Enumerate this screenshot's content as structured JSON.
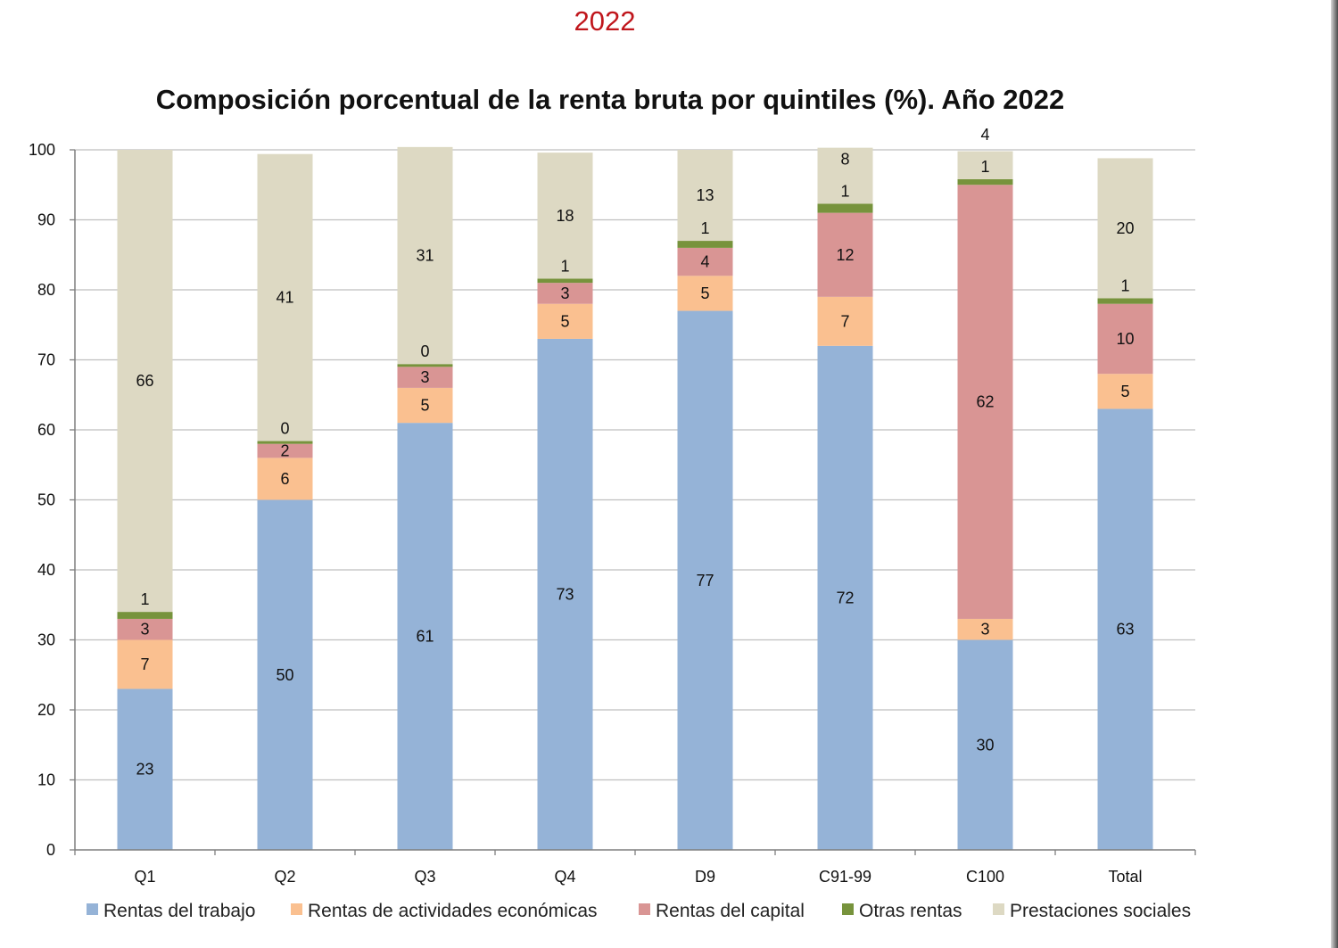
{
  "header": {
    "year": "2022"
  },
  "colors": {
    "rentas_trabajo": "#95b3d7",
    "rentas_actividades": "#fac090",
    "rentas_capital": "#d99594",
    "otras_rentas": "#77933c",
    "prestaciones": "#ddd9c3",
    "grid": "#bfbfbf",
    "axis": "#7f7f7f"
  },
  "chart_data": {
    "type": "bar",
    "stacked": true,
    "title": "Composición porcentual de la renta bruta por quintiles (%). Año 2022",
    "xlabel": "",
    "ylabel": "",
    "ylim": [
      0,
      100
    ],
    "yticks": [
      0,
      10,
      20,
      30,
      40,
      50,
      60,
      70,
      80,
      90,
      100
    ],
    "grid": true,
    "legend_position": "bottom",
    "categories": [
      "Q1",
      "Q2",
      "Q3",
      "Q4",
      "D9",
      "C91-99",
      "C100",
      "Total"
    ],
    "series": [
      {
        "name": "Rentas del trabajo",
        "color_key": "rentas_trabajo",
        "values": [
          23,
          50,
          61,
          73,
          77,
          72,
          30,
          63
        ],
        "labels": [
          "23",
          "50",
          "61",
          "73",
          "77",
          "72",
          "30",
          "63"
        ]
      },
      {
        "name": "Rentas de actividades económicas",
        "color_key": "rentas_actividades",
        "values": [
          7,
          6,
          5,
          5,
          5,
          7,
          3,
          5
        ],
        "labels": [
          "7",
          "6",
          "5",
          "5",
          "5",
          "7",
          "3",
          "5"
        ]
      },
      {
        "name": "Rentas del capital",
        "color_key": "rentas_capital",
        "values": [
          3,
          2,
          3,
          3,
          4,
          12,
          62,
          10
        ],
        "labels": [
          "3",
          "2",
          "3",
          "3",
          "4",
          "12",
          "62",
          "10"
        ]
      },
      {
        "name": "Otras rentas",
        "color_key": "otras_rentas",
        "values": [
          1,
          0.4,
          0.4,
          0.6,
          1,
          1.3,
          0.8,
          0.8
        ],
        "labels": [
          "1",
          "0",
          "0",
          "1",
          "1",
          "1",
          "1",
          "1"
        ]
      },
      {
        "name": "Prestaciones sociales",
        "color_key": "prestaciones",
        "values": [
          66,
          41,
          31,
          18,
          13,
          8,
          4,
          20
        ],
        "labels": [
          "66",
          "41",
          "31",
          "18",
          "13",
          "8",
          "4",
          "20"
        ]
      }
    ]
  }
}
